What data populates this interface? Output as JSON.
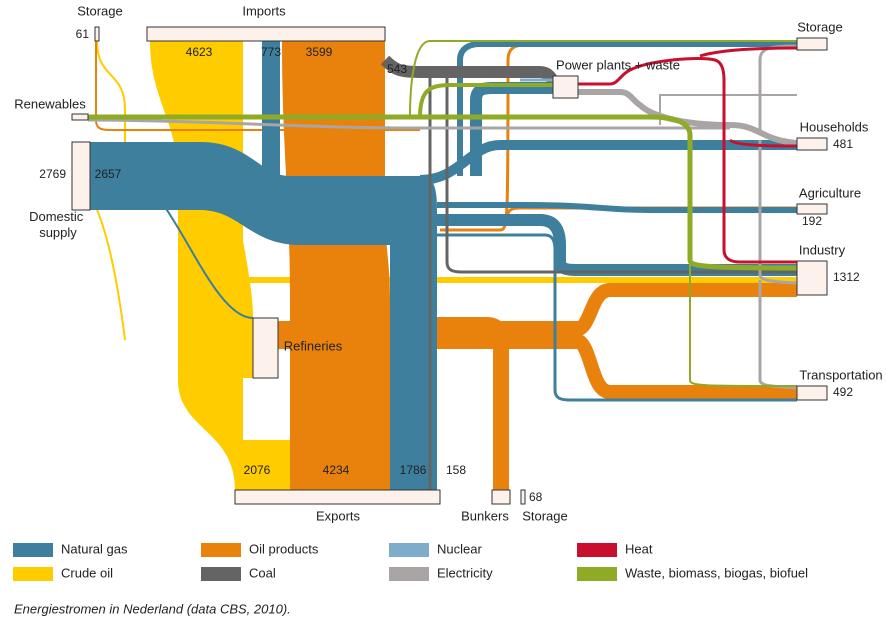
{
  "nodes": [
    {
      "label": "Storage",
      "value": 61
    },
    {
      "label": "Imports",
      "values": [
        4623,
        773,
        3599
      ]
    },
    {
      "label": "Renewables"
    },
    {
      "label": "Domestic supply",
      "values": [
        2769,
        2657
      ]
    },
    {
      "label": "Refineries"
    },
    {
      "label": "Exports",
      "values": [
        2076,
        4234,
        1786,
        158
      ]
    },
    {
      "label": "Bunkers"
    },
    {
      "label": "Storage",
      "value": 68
    },
    {
      "label": "Power plants + waste"
    },
    {
      "label": "Storage"
    },
    {
      "label": "Households",
      "value": 481
    },
    {
      "label": "Agriculture",
      "value": 192
    },
    {
      "label": "Industry",
      "value": 1312
    },
    {
      "label": "Transportation",
      "value": 492
    }
  ],
  "flow_labels": [
    543
  ],
  "legend": [
    {
      "label": "Natural gas",
      "color": "#3d7f9c"
    },
    {
      "label": "Oil products",
      "color": "#e8820c"
    },
    {
      "label": "Nuclear",
      "color": "#7eaccb"
    },
    {
      "label": "Heat",
      "color": "#c8102e"
    },
    {
      "label": "Crude oil",
      "color": "#ffcc00"
    },
    {
      "label": "Coal",
      "color": "#646464"
    },
    {
      "label": "Electricity",
      "color": "#aaa5a5"
    },
    {
      "label": "Waste, biomass, biogas, biofuel",
      "color": "#8fab26"
    }
  ],
  "caption": "Energiestromen in Nederland (data CBS, 2010)."
}
